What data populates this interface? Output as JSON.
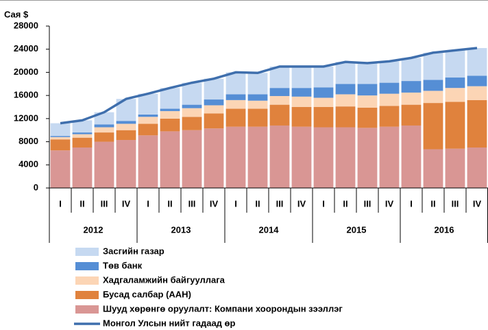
{
  "chart_data": {
    "type": "stacked_bar_line",
    "y_label": "Сая $",
    "categories": [
      "I",
      "II",
      "III",
      "IV",
      "I",
      "II",
      "III",
      "IV",
      "I",
      "II",
      "III",
      "IV",
      "I",
      "II",
      "III",
      "IV",
      "I",
      "II",
      "III",
      "IV"
    ],
    "x_groups": [
      "2012",
      "2013",
      "2014",
      "2015",
      "2016"
    ],
    "ylim": [
      0,
      28000
    ],
    "yticks": [
      0,
      4000,
      8000,
      12000,
      16000,
      20000,
      24000,
      28000
    ],
    "grid": false,
    "series": [
      {
        "name": "Засгийн газар",
        "color": "#c6d9f1",
        "type": "bar",
        "values": [
          2200,
          2100,
          2100,
          3800,
          3600,
          3600,
          3800,
          3600,
          3800,
          3700,
          3700,
          3700,
          3600,
          3800,
          3600,
          3700,
          4000,
          4700,
          4700,
          4800
        ]
      },
      {
        "name": "Төв банк",
        "color": "#558ed5",
        "type": "bar",
        "values": [
          200,
          300,
          500,
          500,
          400,
          400,
          600,
          1000,
          1000,
          1100,
          1400,
          1500,
          1800,
          1800,
          2000,
          1900,
          2000,
          1900,
          1800,
          1800
        ]
      },
      {
        "name": "Хадгаламжийн байгууллага",
        "color": "#fcd5b5",
        "type": "bar",
        "values": [
          400,
          600,
          900,
          1100,
          1200,
          1300,
          1500,
          1400,
          1500,
          1400,
          1500,
          1800,
          1600,
          2100,
          2100,
          2100,
          2100,
          2100,
          2400,
          2400
        ]
      },
      {
        "name": "Бусад салбар (ААН)",
        "color": "#e0823d",
        "type": "bar",
        "values": [
          1900,
          1700,
          1600,
          1700,
          2000,
          2200,
          2300,
          2600,
          3100,
          3100,
          3600,
          3400,
          3500,
          3600,
          3500,
          3600,
          3600,
          8000,
          8100,
          8200
        ]
      },
      {
        "name": "Шууд хөрөнгө оруулалт: Компани хоорондын зээллэг",
        "color": "#d99694",
        "type": "bar",
        "values": [
          6500,
          7000,
          8000,
          8300,
          9100,
          9800,
          10000,
          10300,
          10600,
          10600,
          10800,
          10600,
          10500,
          10500,
          10400,
          10600,
          10800,
          6700,
          6800,
          7000
        ]
      },
      {
        "name": "Монгол Улсын нийт гадаад өр",
        "color": "#3f6fad",
        "type": "line",
        "values": [
          11200,
          11700,
          13100,
          15400,
          16300,
          17300,
          18200,
          18900,
          20000,
          19900,
          21000,
          21000,
          21000,
          21800,
          21600,
          21900,
          22500,
          23400,
          23800,
          24200
        ]
      }
    ]
  }
}
